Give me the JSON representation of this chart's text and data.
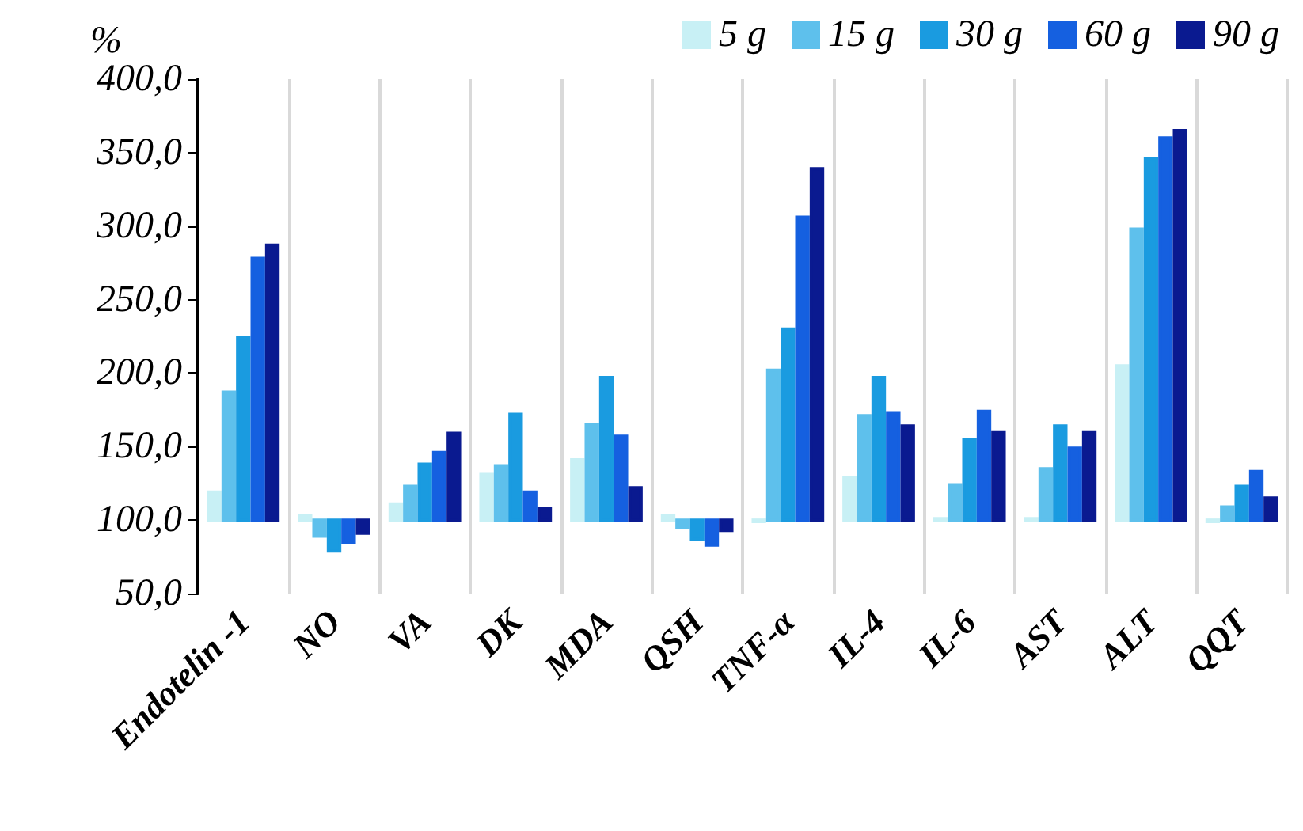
{
  "chart_data": {
    "type": "bar",
    "ylabel": "%",
    "categories": [
      "Endotelin -1",
      "NO",
      "VA",
      "DK",
      "MDA",
      "QSH",
      "TNF-α",
      "IL-4",
      "IL-6",
      "AST",
      "ALT",
      "QQT"
    ],
    "series": [
      {
        "name": "5 g",
        "color": "#c8f0f5",
        "base": [
          100,
          100,
          100,
          100,
          100,
          100,
          100,
          100,
          100,
          100,
          100,
          100
        ],
        "values": [
          19,
          3,
          11,
          31,
          41,
          3,
          -1,
          29,
          1,
          1,
          105,
          -1
        ]
      },
      {
        "name": "15 g",
        "color": "#5ec0ec",
        "base": [
          100,
          100,
          100,
          100,
          100,
          100,
          100,
          100,
          100,
          100,
          100,
          100
        ],
        "values": [
          87,
          -11,
          23,
          37,
          65,
          -5,
          102,
          71,
          24,
          35,
          198,
          9
        ]
      },
      {
        "name": "30 g",
        "color": "#1a9be0",
        "base": [
          100,
          100,
          100,
          100,
          100,
          100,
          100,
          100,
          100,
          100,
          100,
          100
        ],
        "values": [
          124,
          -21,
          38,
          72,
          97,
          -13,
          130,
          97,
          55,
          64,
          246,
          23
        ]
      },
      {
        "name": "60 g",
        "color": "#1560e0",
        "base": [
          100,
          100,
          100,
          100,
          100,
          100,
          100,
          100,
          100,
          100,
          100,
          100
        ],
        "values": [
          178,
          -15,
          46,
          19,
          57,
          -17,
          206,
          73,
          74,
          49,
          260,
          33
        ]
      },
      {
        "name": "90 g",
        "color": "#0a1a90",
        "base": [
          100,
          100,
          100,
          100,
          100,
          100,
          100,
          100,
          100,
          100,
          100,
          100
        ],
        "values": [
          187,
          -9,
          59,
          8,
          22,
          -7,
          239,
          64,
          60,
          60,
          265,
          15
        ]
      }
    ],
    "ylim": [
      50,
      400
    ],
    "yticks": [
      {
        "value": 50,
        "label": "50,0"
      },
      {
        "value": 100,
        "label": "100,0"
      },
      {
        "value": 150,
        "label": "150,0"
      },
      {
        "value": 200,
        "label": "200,0"
      },
      {
        "value": 250,
        "label": "250,0"
      },
      {
        "value": 300,
        "label": "300,0"
      },
      {
        "value": 350,
        "label": "350,0"
      },
      {
        "value": 400,
        "label": "400,0"
      }
    ],
    "grid": "x",
    "legend": "top right"
  }
}
